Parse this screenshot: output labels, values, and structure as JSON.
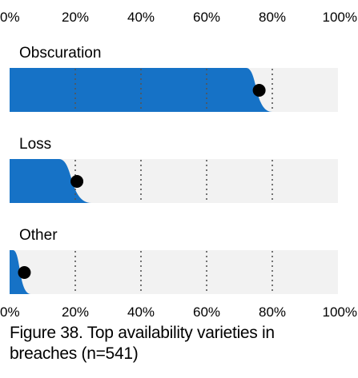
{
  "chart_data": {
    "type": "bar",
    "x_ticks": [
      "0%",
      "20%",
      "40%",
      "60%",
      "80%",
      "100%"
    ],
    "xlim": [
      0,
      100
    ],
    "grid": true,
    "colors": {
      "fill": "#1672c6",
      "track": "#f2f2f2",
      "grid": "#555555",
      "point": "#000000"
    },
    "categories": [
      "Obscuration",
      "Loss",
      "Other"
    ],
    "series": [
      {
        "values": [
          76,
          20.5,
          4.5
        ],
        "interval_low": [
          72,
          15,
          1
        ],
        "interval_high": [
          80,
          25,
          6.5
        ]
      }
    ]
  },
  "caption": "Figure 38. Top availability varieties in breaches (n=541)"
}
